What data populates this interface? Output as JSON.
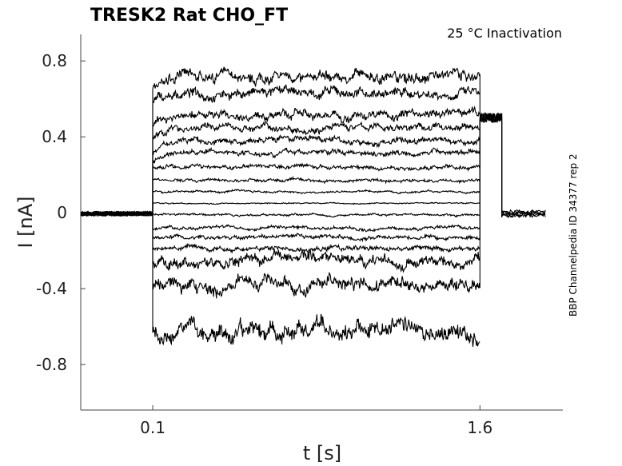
{
  "chart_data": {
    "type": "line",
    "title": "TRESK2  Rat  CHO_FT",
    "subtitle": "25 °C  Inactivation",
    "side_note": "BBP Channelpedia ID 34377 rep 2",
    "xlabel": "t [s]",
    "ylabel": "I [nA]",
    "xlim": [
      -0.23,
      1.98
    ],
    "ylim": [
      -1.04,
      0.94
    ],
    "xticks": [
      0.1,
      1.6
    ],
    "xtick_labels": [
      "0.1",
      "1.6"
    ],
    "yticks": [
      0.8,
      0.4,
      0,
      -0.4,
      -0.8
    ],
    "ytick_labels": [
      "0.8",
      "0.4",
      "0",
      "-0.4",
      "-0.8"
    ],
    "grid": false,
    "legend": "none",
    "line_color": "#000000",
    "step_start": 0.1,
    "step_end": 1.6,
    "holding_current": -0.005,
    "tail_current": 0.5,
    "tail_end": 1.7,
    "series": [
      {
        "step_level": 0.72
      },
      {
        "step_level": 0.63
      },
      {
        "step_level": 0.52
      },
      {
        "step_level": 0.45
      },
      {
        "step_level": 0.38
      },
      {
        "step_level": 0.32
      },
      {
        "step_level": 0.24
      },
      {
        "step_level": 0.17
      },
      {
        "step_level": 0.11
      },
      {
        "step_level": 0.05
      },
      {
        "step_level": -0.01
      },
      {
        "step_level": -0.08
      },
      {
        "step_level": -0.13
      },
      {
        "step_level": -0.19
      },
      {
        "step_level": -0.25
      },
      {
        "step_level": -0.38
      },
      {
        "step_level": -0.63
      }
    ]
  }
}
